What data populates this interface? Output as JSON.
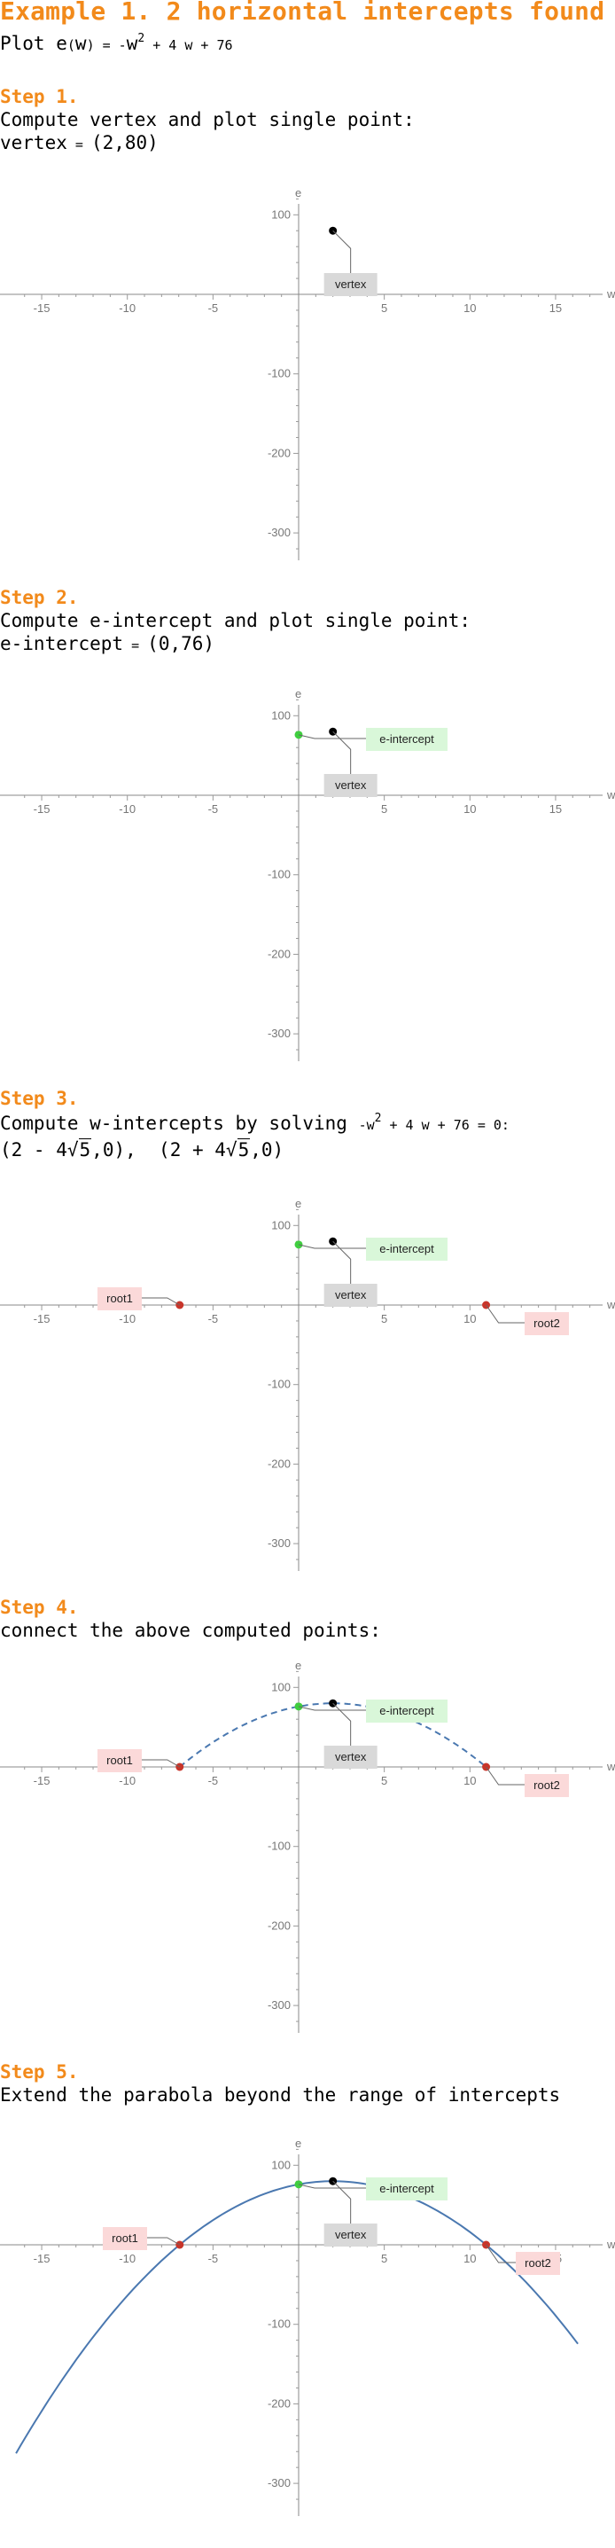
{
  "title": "Example 1. 2 horizontal intercepts found",
  "plot_line": {
    "prefix": "Plot ",
    "func": "e",
    "lparen": "(",
    "arg": "w",
    "rparen": ")",
    "eq": " = -",
    "var": "w",
    "exp": "2",
    "rest": " + 4 w + 76"
  },
  "steps": [
    {
      "heading": "Step 1.",
      "text": "Compute vertex and plot single point:",
      "result_label": "vertex",
      "result_eq": " = ",
      "result_value": "(2,80)"
    },
    {
      "heading": "Step 2.",
      "text": "Compute e-intercept and plot single point:",
      "result_label": "e-intercept",
      "result_eq": " = ",
      "result_value": "(0,76)"
    },
    {
      "heading": "Step 3.",
      "text_a": "Compute w-intercepts by solving ",
      "text_b": "-w",
      "text_exp": "2",
      "text_c": " + 4 w + 76 = 0:",
      "root1_a": "(2 - 4",
      "root1_sqrt_sym": "√",
      "root1_rad": "5",
      "root1_b": ",0),",
      "root2_a": "(2 + 4",
      "root2_sqrt_sym": "√",
      "root2_rad": "5",
      "root2_b": ",0)"
    },
    {
      "heading": "Step 4.",
      "text": "connect the above computed points:"
    },
    {
      "heading": "Step 5.",
      "text": "Extend the parabola beyond the range of intercepts"
    }
  ],
  "plot_labels": {
    "x_axis": "w",
    "y_axis": "e",
    "x_ticks": [
      "-15",
      "-10",
      "-5",
      "5",
      "10",
      "15"
    ],
    "y_ticks": [
      "100",
      "-100",
      "-200",
      "-300"
    ],
    "vertex": "vertex",
    "e_intercept": "e-intercept",
    "root1": "root1",
    "root2": "root2"
  },
  "colors": {
    "heading": "#f28a1b",
    "vertex_box": "#d9d9d9",
    "e_intercept_box": "#d9f7d9",
    "root_box": "#fbd9d9",
    "curve": "#4a78b0",
    "e_intercept_point": "#3fce3f",
    "root_point": "#c8352a"
  },
  "chart_data": {
    "type": "line",
    "function": "e(w) = -w^2 + 4 w + 76",
    "xlabel": "w",
    "ylabel": "e",
    "xlim": [
      -17,
      18
    ],
    "ylim": [
      -320,
      120
    ],
    "points": {
      "vertex": [
        2,
        80
      ],
      "e_intercept": [
        0,
        76
      ],
      "root1": [
        -6.944,
        0
      ],
      "root2": [
        10.944,
        0
      ]
    },
    "extended_curve_range": [
      -16.5,
      16.3
    ]
  }
}
